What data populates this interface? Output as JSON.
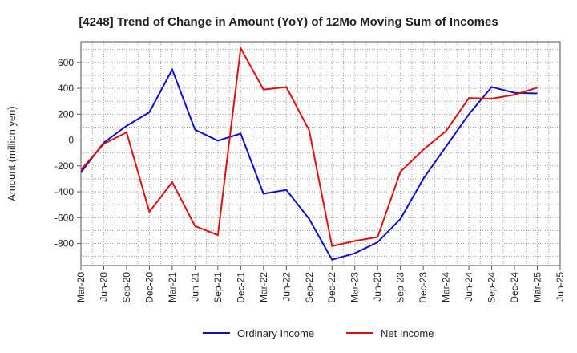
{
  "chart_data": {
    "type": "line",
    "title": "[4248]  Trend of Change in Amount (YoY) of 12Mo Moving Sum of Incomes",
    "xlabel": "",
    "ylabel": "Amount (million yen)",
    "ylim": [
      -970,
      760
    ],
    "yticks": [
      600,
      400,
      200,
      0,
      -200,
      -400,
      -600,
      -800
    ],
    "ytick_labels": [
      "600",
      "400",
      "200",
      "0",
      "-200",
      "-400",
      "-600",
      "-800"
    ],
    "categories": [
      "Mar-20",
      "Jun-20",
      "Sep-20",
      "Dec-20",
      "Mar-21",
      "Jun-21",
      "Sep-21",
      "Dec-21",
      "Mar-22",
      "Jun-22",
      "Sep-22",
      "Dec-22",
      "Mar-23",
      "Jun-23",
      "Sep-23",
      "Dec-23",
      "Mar-24",
      "Jun-24",
      "Sep-24",
      "Dec-24",
      "Mar-25",
      "Jun-25"
    ],
    "grid": true,
    "legend_position": "bottom",
    "series": [
      {
        "name": "Ordinary Income",
        "color": "#1010cc",
        "values": [
          -250,
          -20,
          110,
          215,
          545,
          80,
          -5,
          50,
          -415,
          -385,
          -610,
          -925,
          -875,
          -790,
          -610,
          -300,
          -50,
          200,
          410,
          365,
          360,
          null
        ]
      },
      {
        "name": "Net Income",
        "color": "#e01010",
        "values": [
          -230,
          -30,
          60,
          -555,
          -325,
          -665,
          -735,
          710,
          390,
          410,
          75,
          -820,
          -780,
          -750,
          -245,
          -75,
          70,
          325,
          320,
          350,
          405,
          null
        ]
      }
    ]
  }
}
